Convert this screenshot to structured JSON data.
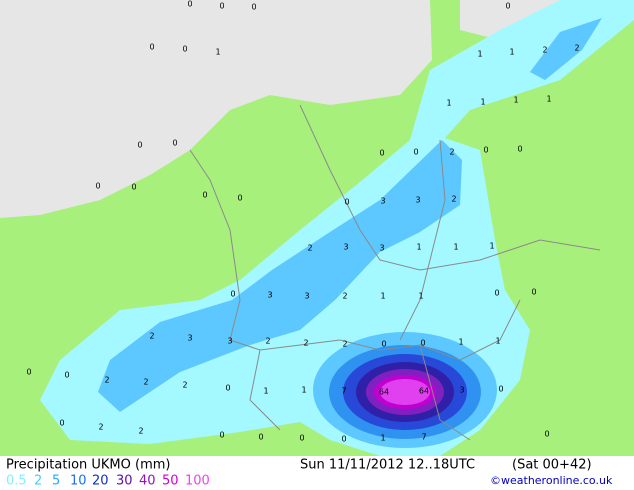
{
  "map": {
    "stations": [
      0,
      0,
      0,
      0,
      0,
      1,
      0,
      1,
      1,
      2,
      2,
      1,
      1,
      1,
      1,
      0,
      0,
      0,
      0,
      0,
      0,
      0,
      0,
      2,
      0,
      0,
      0,
      3,
      3,
      2,
      2,
      3,
      3,
      1,
      1,
      1,
      0,
      3,
      3,
      2,
      1,
      1,
      0,
      0,
      2,
      3,
      3,
      2,
      2,
      2,
      0,
      0,
      1,
      1,
      0,
      0,
      2,
      2,
      2,
      0,
      1,
      1,
      7,
      64,
      64,
      3,
      0,
      0,
      2,
      2,
      0,
      0,
      0,
      0,
      1,
      7,
      0
    ]
  },
  "footer": {
    "title": "Precipitation UKMO (mm)",
    "valid": "Sun 11/11/2012 12..18UTC",
    "run": "(Sat 00+42)",
    "credit": "©weatheronline.co.uk",
    "legend": [
      {
        "label": "0.5",
        "color": "#80f0ff"
      },
      {
        "label": "2",
        "color": "#40d0ff"
      },
      {
        "label": "5",
        "color": "#20a8ff"
      },
      {
        "label": "10",
        "color": "#1870f0"
      },
      {
        "label": "20",
        "color": "#1030c0"
      },
      {
        "label": "30",
        "color": "#6010b0"
      },
      {
        "label": "40",
        "color": "#9010c0"
      },
      {
        "label": "50",
        "color": "#d000d0"
      },
      {
        "label": "100",
        "color": "#f040f0"
      }
    ]
  }
}
